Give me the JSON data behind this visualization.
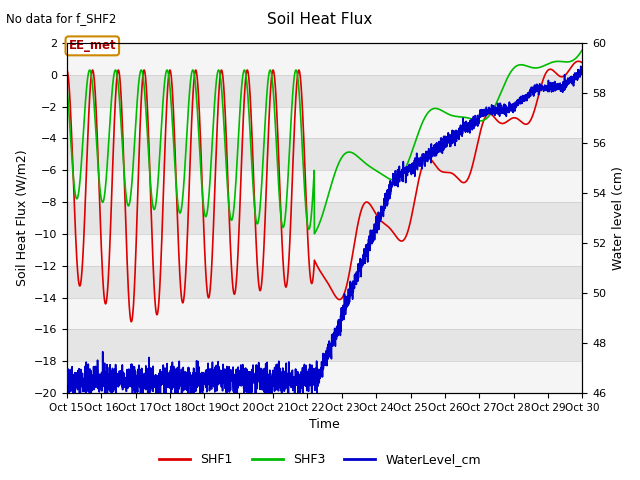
{
  "title": "Soil Heat Flux",
  "subtitle": "No data for f_SHF2",
  "xlabel": "Time",
  "ylabel_left": "Soil Heat Flux (W/m2)",
  "ylabel_right": "Water level (cm)",
  "ylim_left": [
    -20,
    2
  ],
  "ylim_right": [
    46,
    60
  ],
  "yticks_left": [
    2,
    0,
    -2,
    -4,
    -6,
    -8,
    -10,
    -12,
    -14,
    -16,
    -18,
    -20
  ],
  "yticks_right": [
    60,
    58,
    56,
    54,
    52,
    50,
    48,
    46
  ],
  "xtick_labels": [
    "Oct 15",
    "Oct 16",
    "Oct 17",
    "Oct 18",
    "Oct 19",
    "Oct 20",
    "Oct 21",
    "Oct 22",
    "Oct 23",
    "Oct 24",
    "Oct 25",
    "Oct 26",
    "Oct 27",
    "Oct 28",
    "Oct 29",
    "Oct 30"
  ],
  "annotation_text": "EE_met",
  "shf1_color": "#dd0000",
  "shf3_color": "#00bb00",
  "water_color": "#0000cc",
  "band_light": "#f5f5f5",
  "band_dark": "#e5e5e5",
  "legend_labels": [
    "SHF1",
    "SHF3",
    "WaterLevel_cm"
  ]
}
